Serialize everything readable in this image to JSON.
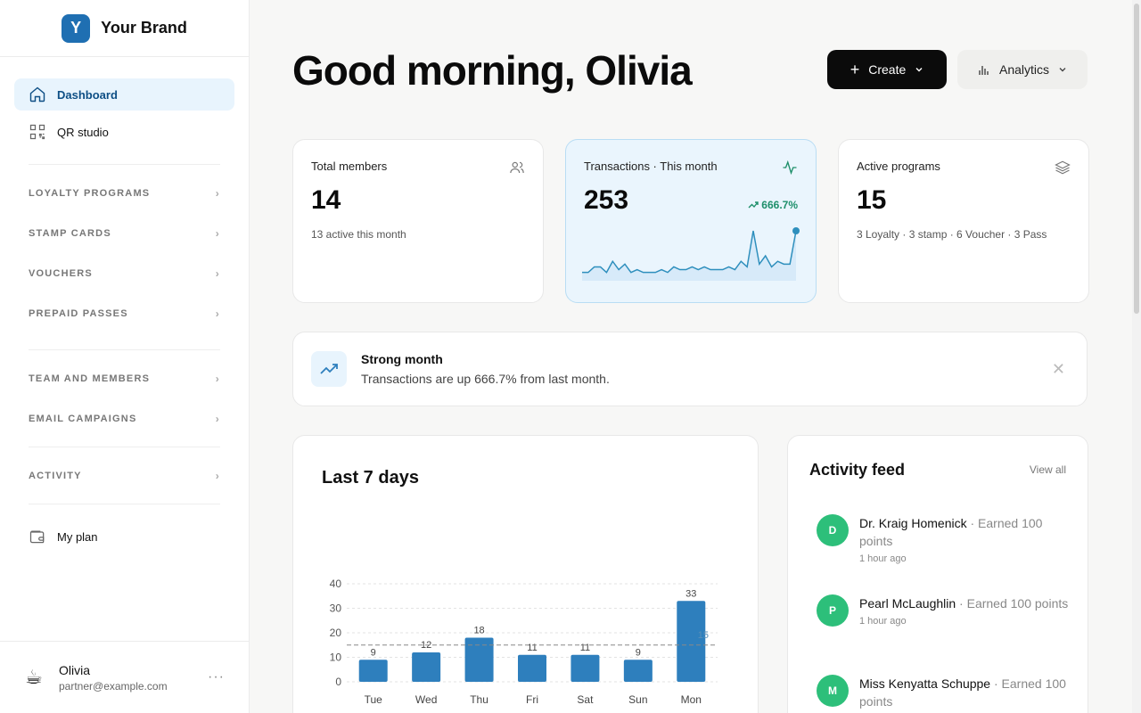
{
  "brand": {
    "initial": "Y",
    "name": "Your Brand"
  },
  "nav": {
    "items": [
      {
        "label": "Dashboard",
        "icon": "home-icon",
        "active": true
      },
      {
        "label": "QR studio",
        "icon": "qr-icon",
        "active": false
      }
    ],
    "sections_1": [
      "LOYALTY PROGRAMS",
      "STAMP CARDS",
      "VOUCHERS",
      "PREPAID PASSES"
    ],
    "sections_2": [
      "TEAM AND MEMBERS",
      "EMAIL CAMPAIGNS"
    ],
    "sections_3": [
      "ACTIVITY"
    ],
    "plan_label": "My plan"
  },
  "user": {
    "name": "Olivia",
    "email": "partner@example.com",
    "more": "···"
  },
  "header": {
    "greeting": "Good morning, Olivia",
    "create_label": "Create",
    "analytics_label": "Analytics"
  },
  "stats": [
    {
      "label": "Total members",
      "value": "14",
      "sub": "13 active this month",
      "icon": "users-icon"
    },
    {
      "label": "Transactions · This month",
      "value": "253",
      "trend": "666.7%",
      "icon": "activity-icon"
    },
    {
      "label": "Active programs",
      "value": "15",
      "sub": "3 Loyalty · 3 stamp · 6 Voucher · 3 Pass",
      "icon": "layers-icon"
    }
  ],
  "sparkline": [
    3,
    3,
    5,
    5,
    3,
    7,
    4,
    6,
    3,
    4,
    3,
    3,
    3,
    4,
    3,
    5,
    4,
    4,
    5,
    4,
    5,
    4,
    4,
    4,
    5,
    4,
    7,
    5,
    18,
    6,
    9,
    5,
    7,
    6,
    6,
    18
  ],
  "alert": {
    "title": "Strong month",
    "text": "Transactions are up 666.7% from last month.",
    "close": "✕"
  },
  "chart": {
    "title": "Last 7 days"
  },
  "chart_data": {
    "type": "bar",
    "categories": [
      "Tue",
      "Wed",
      "Thu",
      "Fri",
      "Sat",
      "Sun",
      "Mon"
    ],
    "values": [
      9,
      12,
      18,
      11,
      11,
      9,
      33
    ],
    "ylim": [
      0,
      40
    ],
    "yticks": [
      0,
      10,
      20,
      30,
      40
    ],
    "average": 15,
    "average_label": "15",
    "grid": true,
    "color": "#2e7fbd"
  },
  "feed": {
    "title": "Activity feed",
    "view_all": "View all",
    "items": [
      {
        "initial": "D",
        "name": "Dr. Kraig Homenick",
        "action": " · Earned 100 points",
        "time": "1 hour ago"
      },
      {
        "initial": "P",
        "name": "Pearl McLaughlin",
        "action": " · Earned 100 points",
        "time": "1 hour ago"
      },
      {
        "initial": "M",
        "name": "Miss Kenyatta Schuppe",
        "action": " · Earned 100 points",
        "time": ""
      }
    ]
  }
}
